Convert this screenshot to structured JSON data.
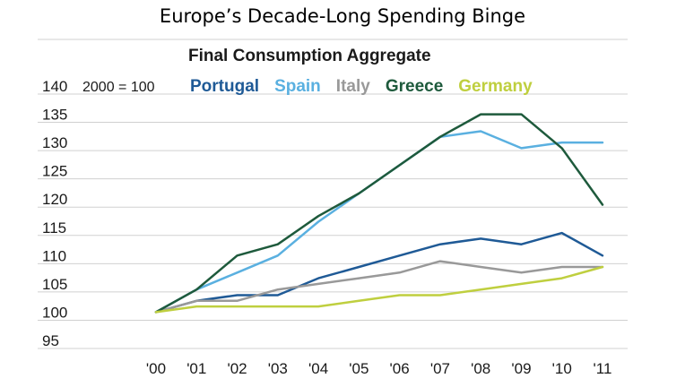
{
  "page_title": "Europe’s Decade-Long Spending Binge",
  "chart_data": {
    "type": "line",
    "title": "Final Consumption Aggregate",
    "index_note": "2000 = 100",
    "x": [
      "'00",
      "'01",
      "'02",
      "'03",
      "'04",
      "'05",
      "'06",
      "'07",
      "'08",
      "'09",
      "'10",
      "'11"
    ],
    "y_ticks": [
      140,
      135,
      130,
      125,
      120,
      115,
      110,
      105,
      100,
      95
    ],
    "ylim": [
      95,
      140
    ],
    "grid": true,
    "legend_position": "top",
    "series": [
      {
        "name": "Portugal",
        "color": "#1f5a96",
        "values": [
          100,
          102,
          103,
          103,
          106,
          108,
          110,
          112,
          113,
          112,
          114,
          110
        ]
      },
      {
        "name": "Spain",
        "color": "#5ab0e0",
        "values": [
          100,
          104,
          107,
          110,
          116,
          121,
          126,
          131,
          132,
          129,
          130,
          130
        ]
      },
      {
        "name": "Italy",
        "color": "#999999",
        "values": [
          100,
          102,
          102,
          104,
          105,
          106,
          107,
          109,
          108,
          107,
          108,
          108
        ]
      },
      {
        "name": "Greece",
        "color": "#1e5a3c",
        "values": [
          100,
          104,
          110,
          112,
          117,
          121,
          126,
          131,
          135,
          135,
          129,
          119
        ]
      },
      {
        "name": "Germany",
        "color": "#bfcf3f",
        "values": [
          100,
          101,
          101,
          101,
          101,
          102,
          103,
          103,
          104,
          105,
          106,
          108
        ]
      }
    ]
  }
}
